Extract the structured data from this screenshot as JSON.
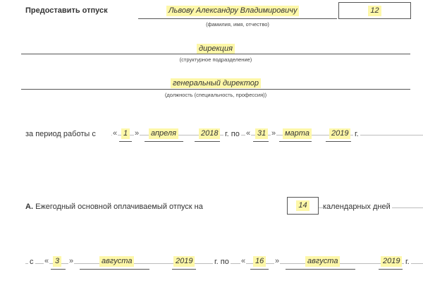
{
  "header": {
    "title": "Предоставить отпуск",
    "employee_name": "Львову Александру Владимировичу",
    "employee_name_caption": "(фамилия, имя, отчество)",
    "tab_number": "12"
  },
  "department": {
    "value": "дирекция",
    "caption": "(структурное подразделение)"
  },
  "position": {
    "value": "генеральный директор",
    "caption": "(должность (специальность, профессия))"
  },
  "work_period": {
    "prefix": "за период работы с",
    "from_day": "1",
    "from_month": "апреля",
    "from_year": "2018",
    "year_to_label": "г. по",
    "to_day": "31",
    "to_month": "марта",
    "to_year": "2019",
    "year_suffix": "г.",
    "quote_open": "«",
    "quote_close": "»"
  },
  "section_a": {
    "marker": "А.",
    "text": "Ежегодный основной оплачиваемый отпуск на",
    "days": "14",
    "days_label": "календарных дней"
  },
  "vacation_dates": {
    "from_label": "с",
    "from_day": "3",
    "from_month": "августа",
    "from_year": "2019",
    "year_to_label": "г. по",
    "to_day": "16",
    "to_month": "августа",
    "to_year": "2019",
    "year_suffix": "г.",
    "quote_open": "«",
    "quote_close": "»"
  }
}
